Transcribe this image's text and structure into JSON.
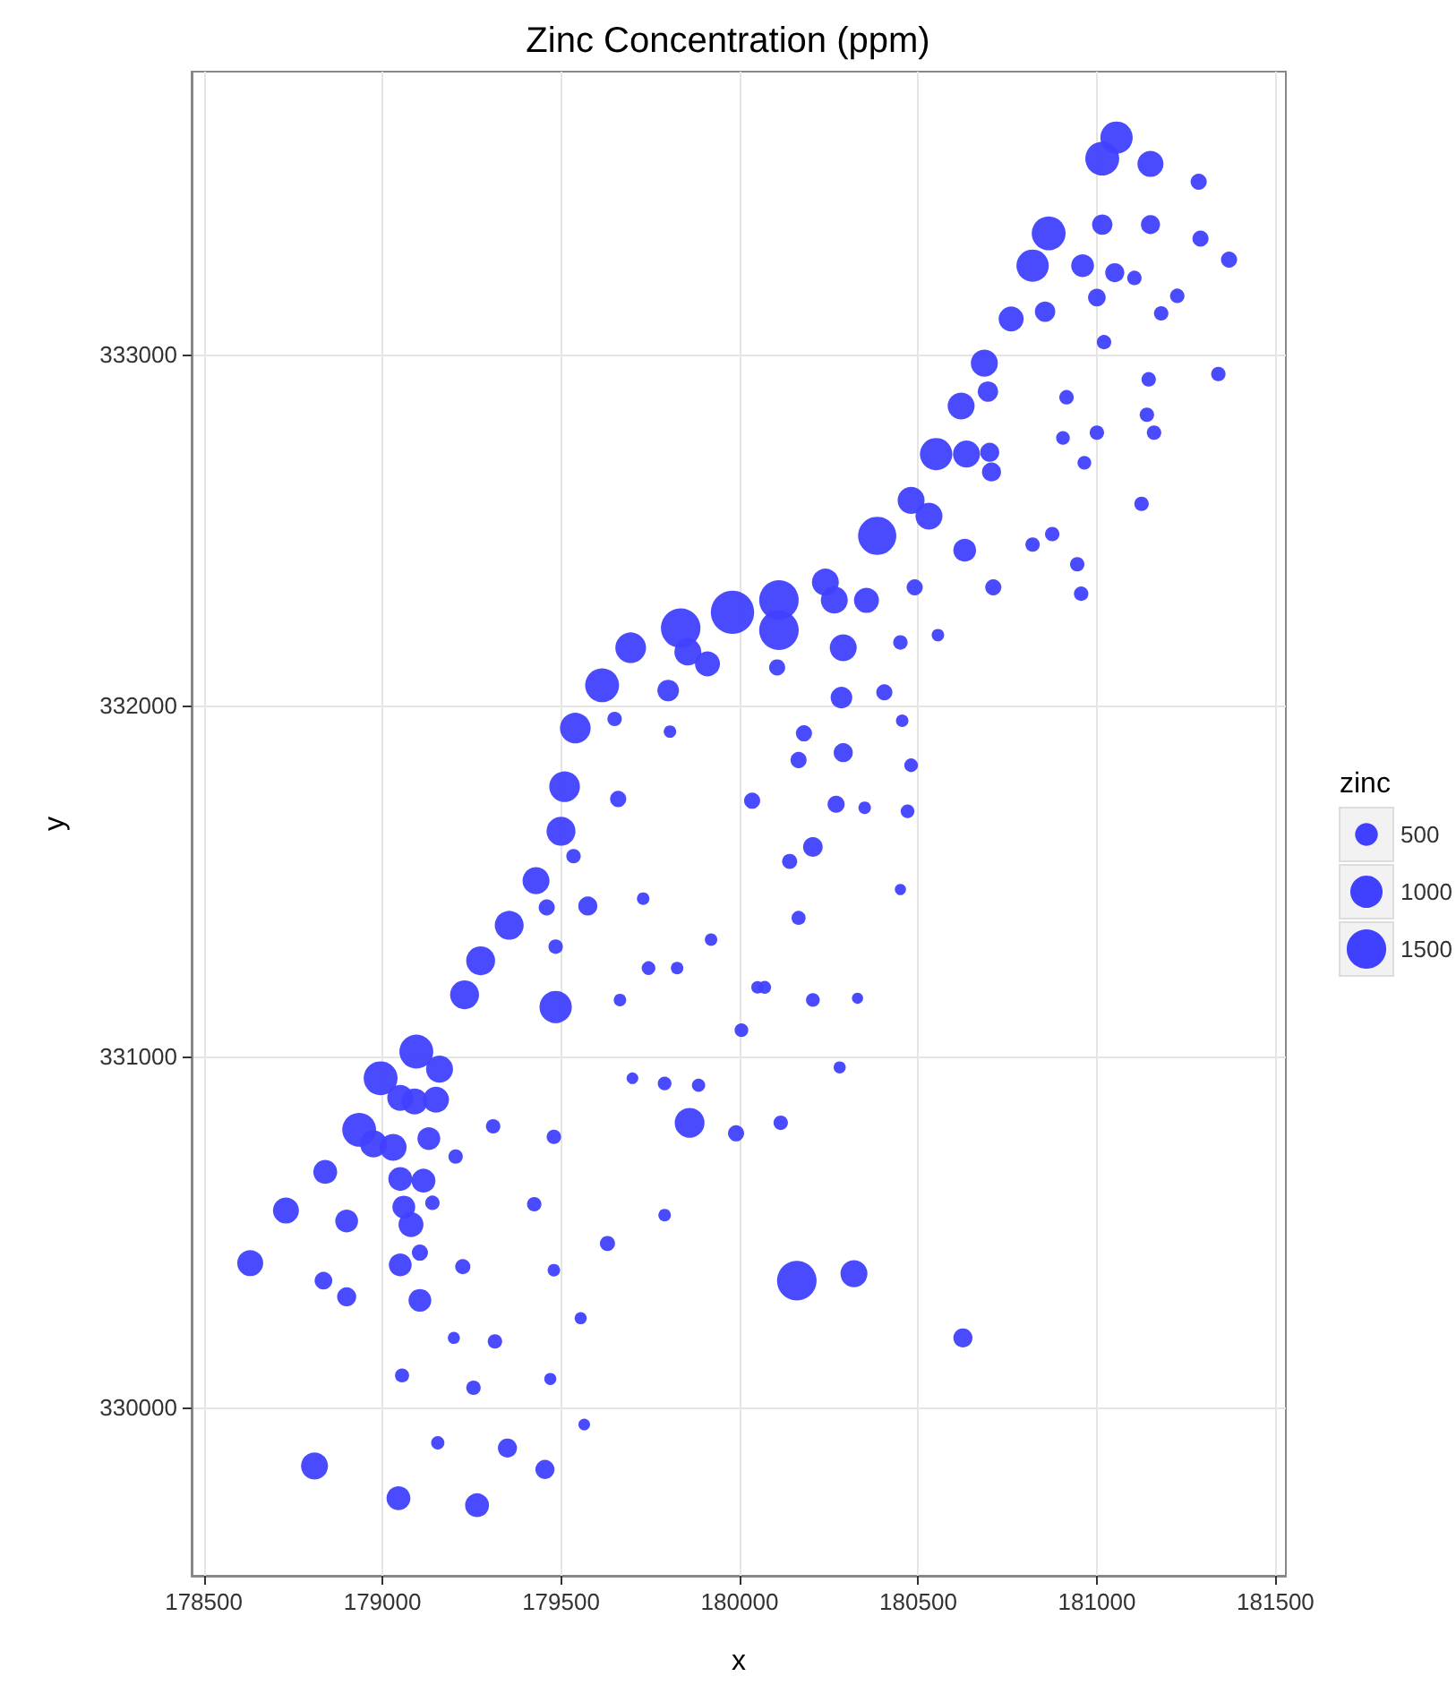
{
  "chart_data": {
    "type": "bubble",
    "title": "Zinc Concentration (ppm)",
    "xlabel": "x",
    "ylabel": "y",
    "legend_title": "zinc",
    "grid": true,
    "xlim": [
      178466,
      181529
    ],
    "ylim": [
      329519,
      333806
    ],
    "xticks": [
      178500,
      179000,
      179500,
      180000,
      180500,
      181000,
      181500
    ],
    "yticks": [
      330000,
      331000,
      332000,
      333000
    ],
    "size_legend": [
      500,
      1000,
      1500
    ],
    "series": [
      {
        "color": "#4040ff",
        "x": [
          181055,
          181015,
          181150,
          181285,
          181290,
          181370,
          181150,
          181015,
          181050,
          181105,
          181225,
          181180,
          181000,
          181020,
          180865,
          180960,
          180820,
          180855,
          180760,
          180685,
          181340,
          181145,
          180915,
          180695,
          180620,
          181140,
          181160,
          181000,
          180905,
          180965,
          181125,
          180550,
          180635,
          180700,
          180705,
          180480,
          180530,
          180385,
          180630,
          180820,
          180875,
          180945,
          180956,
          180710,
          180490,
          180240,
          180265,
          180355,
          180110,
          180110,
          179980,
          179835,
          179855,
          179910,
          179695,
          179615,
          179800,
          179650,
          179805,
          179540,
          179510,
          179660,
          180035,
          179500,
          179535,
          179430,
          179460,
          179575,
          179730,
          179355,
          179485,
          179920,
          179275,
          179745,
          179825,
          179230,
          179485,
          179665,
          180005,
          180050,
          179095,
          180105,
          180290,
          180450,
          180555,
          180285,
          180405,
          180455,
          180180,
          180165,
          180290,
          180480,
          180270,
          180350,
          180470,
          180205,
          180140,
          180450,
          180165,
          180070,
          180205,
          180330,
          179160,
          178995,
          179700,
          179790,
          179885,
          179050,
          179090,
          179150,
          178935,
          178975,
          179030,
          179130,
          179310,
          179480,
          179860,
          179990,
          179205,
          178840,
          179050,
          179115,
          178730,
          178900,
          179060,
          179080,
          179140,
          179425,
          179790,
          179630,
          178630,
          179050,
          179105,
          179225,
          179480,
          178835,
          178900,
          179105,
          179555,
          179200,
          179315,
          179055,
          179255,
          179470,
          179565,
          179155,
          179350,
          179455,
          178810,
          179045,
          179265,
          180280,
          180115,
          180160,
          180320,
          180625
        ],
        "values": [
          333618,
          333558,
          333543,
          333492,
          333330,
          333270,
          333370,
          333370,
          333233,
          333218,
          333167,
          333117,
          333162,
          333035,
          333345,
          333253,
          333253,
          333122,
          333101,
          332975,
          332944,
          332929,
          332878,
          332894,
          332853,
          332828,
          332777,
          332777,
          332762,
          332691,
          332574,
          332716,
          332716,
          332721,
          332665,
          332584,
          332539,
          332483,
          332442,
          332458,
          332488,
          332402,
          332318,
          332336,
          332336,
          332351,
          332300,
          332299,
          332300,
          332214,
          332265,
          332220,
          332152,
          332118,
          332164,
          332057,
          332042,
          331961,
          331925,
          331935,
          331768,
          331733,
          331728,
          331641,
          331570,
          331500,
          331424,
          331428,
          331449,
          331373,
          331312,
          331332,
          331272,
          331251,
          331251,
          331175,
          331140,
          331160,
          331074,
          331196,
          331013,
          332108,
          332164,
          332179,
          332200,
          332022,
          332037,
          331956,
          331920,
          331844,
          331865,
          331829,
          331718,
          331708,
          331698,
          331596,
          331555,
          331475,
          331394,
          331196,
          331160,
          331165,
          330963,
          330937,
          330937,
          330922,
          330917,
          330881,
          330871,
          330876,
          330790,
          330750,
          330740,
          330765,
          330800,
          330770,
          330810,
          330780,
          330714,
          330670,
          330650,
          330645,
          330560,
          330530,
          330570,
          330520,
          330582,
          330578,
          330547,
          330466,
          330410,
          330405,
          330440,
          330400,
          330390,
          330360,
          330314,
          330304,
          330253,
          330197,
          330187,
          330090,
          330055,
          330080,
          329950,
          329898,
          329883,
          329822,
          329832,
          329740,
          329720,
          330968,
          330810,
          330360,
          330380,
          330197
        ],
        "sizes": [
          1000,
          1100,
          650,
          250,
          250,
          250,
          350,
          400,
          350,
          200,
          200,
          200,
          300,
          200,
          1100,
          500,
          1000,
          400,
          600,
          700,
          200,
          200,
          200,
          400,
          700,
          200,
          200,
          200,
          180,
          180,
          200,
          1000,
          700,
          350,
          350,
          700,
          700,
          1400,
          500,
          200,
          200,
          200,
          200,
          250,
          250,
          700,
          700,
          600,
          1500,
          1500,
          1800,
          1500,
          700,
          600,
          900,
          1100,
          450,
          200,
          150,
          900,
          900,
          250,
          250,
          800,
          200,
          700,
          250,
          350,
          150,
          800,
          200,
          150,
          800,
          180,
          150,
          800,
          1000,
          150,
          180,
          150,
          1100,
          250,
          700,
          200,
          150,
          450,
          250,
          150,
          250,
          250,
          350,
          180,
          280,
          150,
          180,
          370,
          220,
          120,
          190,
          160,
          180,
          120,
          700,
          1100,
          130,
          180,
          170,
          650,
          650,
          650,
          1100,
          700,
          700,
          500,
          200,
          200,
          850,
          250,
          200,
          550,
          550,
          550,
          650,
          500,
          500,
          600,
          200,
          200,
          150,
          220,
          650,
          500,
          250,
          220,
          150,
          300,
          350,
          500,
          140,
          140,
          200,
          190,
          200,
          140,
          130,
          170,
          350,
          350,
          700,
          550,
          550,
          140,
          200,
          1500,
          700,
          350
        ]
      }
    ]
  }
}
